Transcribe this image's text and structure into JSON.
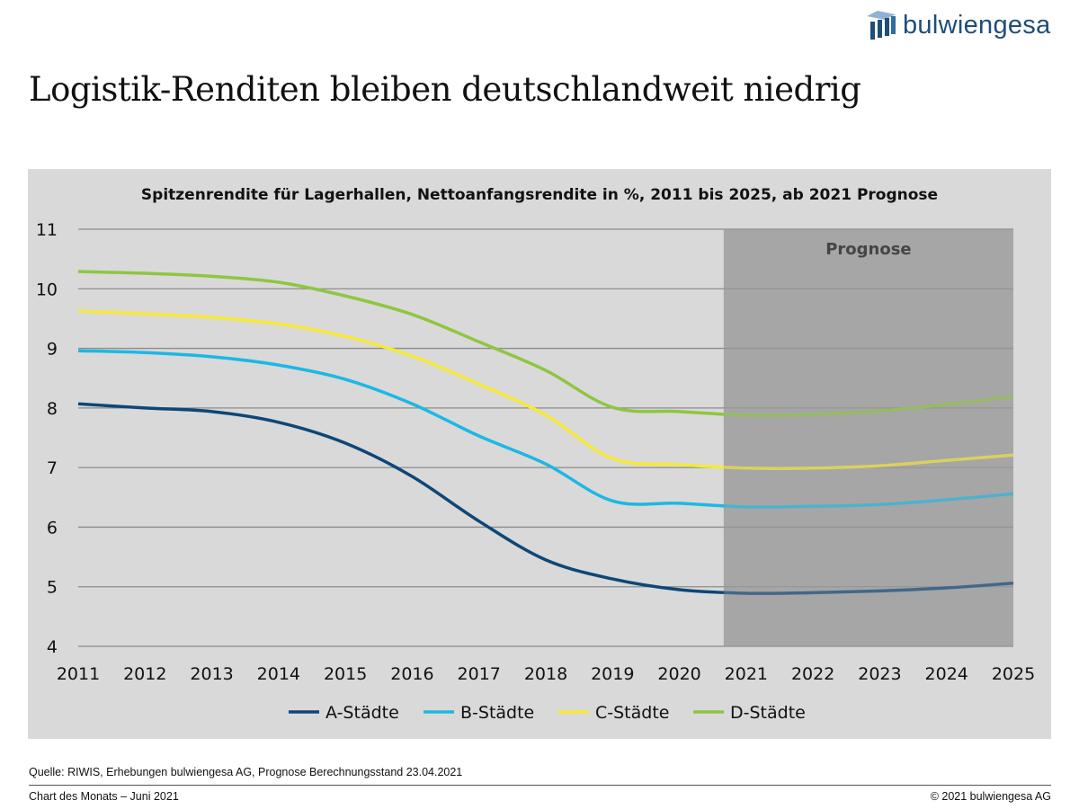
{
  "brand": {
    "logo_text": "bulwiengesa",
    "logo_color": "#1f4e79"
  },
  "page_title": "Logistik-Renditen bleiben deutschlandweit niedrig",
  "source": "Quelle: RIWIS, Erhebungen bulwiengesa AG, Prognose Berechnungsstand 23.04.2021",
  "footer": {
    "left": "Chart des Monats – Juni 2021",
    "right": "© 2021 bulwiengesa AG"
  },
  "chart_data": {
    "type": "line",
    "title": "Spitzenrendite für Lagerhallen, Nettoanfangsrendite in %, 2011 bis 2025, ab 2021 Prognose",
    "x": [
      2011,
      2012,
      2013,
      2014,
      2015,
      2016,
      2017,
      2018,
      2019,
      2020,
      2021,
      2022,
      2023,
      2024,
      2025
    ],
    "xlim": [
      2011,
      2025
    ],
    "ylim": [
      4,
      11
    ],
    "yticks": [
      4,
      5,
      6,
      7,
      8,
      9,
      10,
      11
    ],
    "grid": true,
    "legend_position": "bottom",
    "forecast": {
      "label": "Prognose",
      "start": 2021,
      "color": "#a6a6a6"
    },
    "series": [
      {
        "name": "A-Städte",
        "color": "#0e4677",
        "values": [
          8.07,
          8.0,
          7.94,
          7.76,
          7.41,
          6.85,
          6.1,
          5.45,
          5.13,
          4.95,
          4.89,
          4.9,
          4.93,
          4.98,
          5.06
        ]
      },
      {
        "name": "B-Städte",
        "color": "#1cb8e4",
        "values": [
          8.96,
          8.93,
          8.86,
          8.72,
          8.48,
          8.07,
          7.53,
          7.06,
          6.44,
          6.4,
          6.34,
          6.35,
          6.38,
          6.46,
          6.56
        ]
      },
      {
        "name": "C-Städte",
        "color": "#f5e93a",
        "values": [
          9.63,
          9.58,
          9.52,
          9.41,
          9.2,
          8.87,
          8.4,
          7.88,
          7.15,
          7.05,
          6.99,
          6.99,
          7.03,
          7.12,
          7.21
        ]
      },
      {
        "name": "D-Städte",
        "color": "#8ec641",
        "values": [
          10.29,
          10.26,
          10.21,
          10.11,
          9.88,
          9.57,
          9.11,
          8.63,
          8.01,
          7.94,
          7.88,
          7.89,
          7.95,
          8.06,
          8.19
        ]
      }
    ]
  }
}
